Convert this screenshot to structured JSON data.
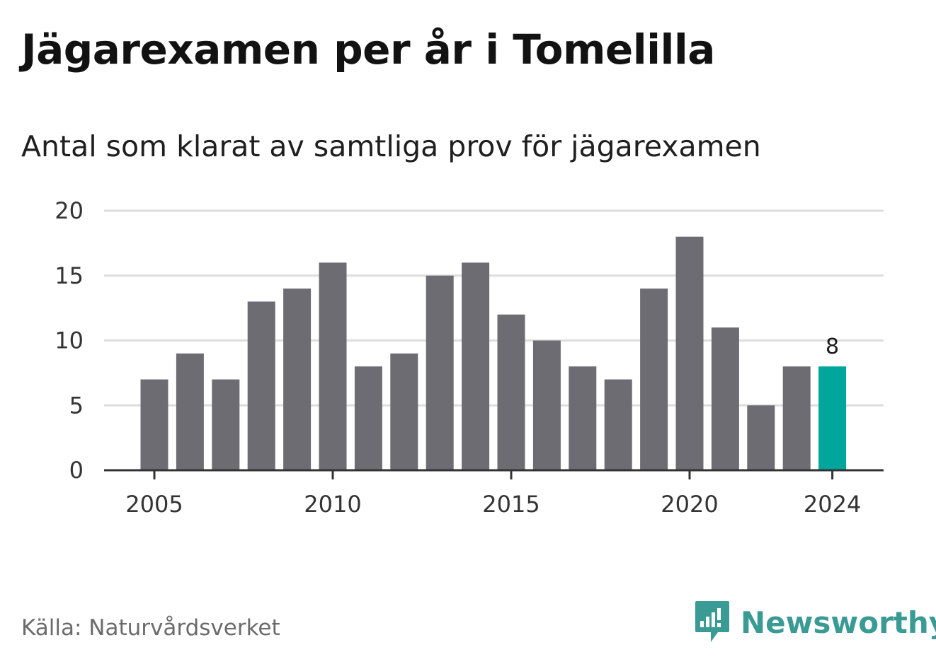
{
  "title": "Jägarexamen per år i Tomelilla",
  "subtitle": "Antal som klarat av samtliga prov för jägarexamen",
  "source": "Källa: Naturvårdsverket",
  "brand": {
    "name": "Newsworthy",
    "icon": "newsworthy-logo-icon",
    "color": "#3a9a94"
  },
  "colors": {
    "bar": "#6d6c72",
    "highlight": "#00a59b",
    "grid": "#dddddd",
    "axis": "#333333"
  },
  "chart_data": {
    "type": "bar",
    "x": [
      2005,
      2006,
      2007,
      2008,
      2009,
      2010,
      2011,
      2012,
      2013,
      2014,
      2015,
      2016,
      2017,
      2018,
      2019,
      2020,
      2021,
      2022,
      2023,
      2024
    ],
    "values": [
      7,
      9,
      7,
      13,
      14,
      16,
      8,
      9,
      15,
      16,
      12,
      10,
      8,
      7,
      14,
      18,
      11,
      5,
      8,
      8
    ],
    "xticks": [
      "2005",
      "2010",
      "2015",
      "2020",
      "2024"
    ],
    "yticks": [
      "0",
      "5",
      "10",
      "15",
      "20"
    ],
    "ylim": [
      0,
      20
    ],
    "highlight_year": 2024,
    "data_label": "8",
    "grid": true
  }
}
